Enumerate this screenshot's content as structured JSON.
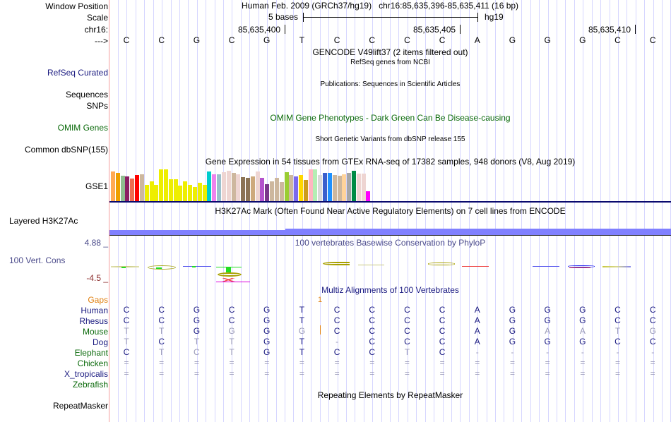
{
  "header": {
    "window_position_label": "Window Position",
    "scale_label": "Scale",
    "chrom_label": "chr16:",
    "strand_label": "--->",
    "assembly_title": "Human Feb. 2009 (GRCh37/hg19)",
    "position": "chr16:85,635,396-85,635,411 (16 bp)",
    "scale_text": "5 bases",
    "scale_db": "hg19",
    "coordinates": [
      "85,635,400",
      "85,635,405",
      "85,635,410"
    ]
  },
  "sequence": [
    "C",
    "C",
    "G",
    "C",
    "G",
    "T",
    "C",
    "C",
    "C",
    "C",
    "A",
    "G",
    "G",
    "G",
    "C",
    "C"
  ],
  "tracks": {
    "gencode": {
      "title": "GENCODE V49lift37 (2 items filtered out)"
    },
    "refseq": {
      "label": "RefSeq Curated",
      "title": "RefSeq genes from NCBI"
    },
    "publications": {
      "label_line1": "Sequences",
      "label_line2": "SNPs",
      "title": "Publications: Sequences in Scientific Articles"
    },
    "omim": {
      "label": "OMIM Genes",
      "title": "OMIM Gene Phenotypes - Dark Green Can Be Disease-causing"
    },
    "dbsnp": {
      "label": "Common dbSNP(155)",
      "title": "Short Genetic Variants from dbSNP release 155"
    },
    "gtex": {
      "label": "GSE1",
      "title": "Gene Expression in 54 tissues from GTEx RNA-seq of 17382 samples, 948 donors (V8, Aug 2019)",
      "bars": [
        {
          "color": "#ffaa55",
          "value": 0.94
        },
        {
          "color": "#ee9f00",
          "value": 0.9
        },
        {
          "color": "#8fbc8f",
          "value": 0.8
        },
        {
          "color": "#8b1c62",
          "value": 0.78
        },
        {
          "color": "#ee6a50",
          "value": 0.72
        },
        {
          "color": "#ff0000",
          "value": 0.82
        },
        {
          "color": "#cdb79e",
          "value": 0.85
        },
        {
          "color": "#eeee00",
          "value": 0.52
        },
        {
          "color": "#eeee00",
          "value": 0.62
        },
        {
          "color": "#eeee00",
          "value": 0.52
        },
        {
          "color": "#eeee00",
          "value": 0.99
        },
        {
          "color": "#eeee00",
          "value": 0.99
        },
        {
          "color": "#eeee00",
          "value": 0.7
        },
        {
          "color": "#eeee00",
          "value": 0.7
        },
        {
          "color": "#eeee00",
          "value": 0.5
        },
        {
          "color": "#eeee00",
          "value": 0.62
        },
        {
          "color": "#eeee00",
          "value": 0.52
        },
        {
          "color": "#eeee00",
          "value": 0.45
        },
        {
          "color": "#eeee00",
          "value": 0.58
        },
        {
          "color": "#eeee00",
          "value": 0.52
        },
        {
          "color": "#00cdcd",
          "value": 0.94
        },
        {
          "color": "#ee82ee",
          "value": 0.85
        },
        {
          "color": "#9ac0cd",
          "value": 0.85
        },
        {
          "color": "#eed5d2",
          "value": 0.92
        },
        {
          "color": "#eed5d2",
          "value": 0.96
        },
        {
          "color": "#cdb79e",
          "value": 0.9
        },
        {
          "color": "#eed5d2",
          "value": 0.85
        },
        {
          "color": "#8b7355",
          "value": 0.76
        },
        {
          "color": "#8b7355",
          "value": 0.73
        },
        {
          "color": "#cdaa7d",
          "value": 0.79
        },
        {
          "color": "#eed5d2",
          "value": 0.94
        },
        {
          "color": "#b452cd",
          "value": 0.74
        },
        {
          "color": "#7a378b",
          "value": 0.54
        },
        {
          "color": "#cdb79e",
          "value": 0.62
        },
        {
          "color": "#cdb79e",
          "value": 0.73
        },
        {
          "color": "#cdb79e",
          "value": 0.61
        },
        {
          "color": "#9acd32",
          "value": 0.91
        },
        {
          "color": "#cdb79e",
          "value": 0.83
        },
        {
          "color": "#7b68ee",
          "value": 0.79
        },
        {
          "color": "#ffd700",
          "value": 0.83
        },
        {
          "color": "#cd9b1d",
          "value": 0.67
        },
        {
          "color": "#ffb6c1",
          "value": 1.0
        },
        {
          "color": "#b4eeb4",
          "value": 1.0
        },
        {
          "color": "#d9d9d9",
          "value": 0.83
        },
        {
          "color": "#3a5fcd",
          "value": 0.89
        },
        {
          "color": "#1e90ff",
          "value": 0.89
        },
        {
          "color": "#cdb79e",
          "value": 0.82
        },
        {
          "color": "#cdb79e",
          "value": 0.8
        },
        {
          "color": "#ffd39b",
          "value": 0.84
        },
        {
          "color": "#a6a6a6",
          "value": 0.89
        },
        {
          "color": "#008b45",
          "value": 0.95
        },
        {
          "color": "#eed5d2",
          "value": 0.86
        },
        {
          "color": "#eed5d2",
          "value": 0.88
        },
        {
          "color": "#ff00ff",
          "value": 0.33
        }
      ]
    },
    "h3k27ac": {
      "label": "Layered H3K27Ac",
      "title": "H3K27Ac Mark (Often Found Near Active Regulatory Elements) on 7 cell lines from ENCODE",
      "color": "#8080ff"
    },
    "cons": {
      "label": "100 Vert. Cons",
      "title": "100 vertebrates Basewise Conservation by PhyloP",
      "max": "4.88 _",
      "min": "-4.5 _"
    },
    "multiz": {
      "title": "Multiz Alignments of 100 Vertebrates",
      "gaps_label": "Gaps",
      "gap_marker": "1",
      "species": [
        {
          "name": "Human",
          "color": "navy",
          "bases": [
            "C",
            "C",
            "G",
            "C",
            "G",
            "T",
            "C",
            "C",
            "C",
            "C",
            "A",
            "G",
            "G",
            "G",
            "C",
            "C"
          ]
        },
        {
          "name": "Rhesus",
          "color": "navy",
          "bases": [
            "C",
            "C",
            "G",
            "C",
            "G",
            "T",
            "C",
            "C",
            "C",
            "C",
            "A",
            "G",
            "G",
            "G",
            "C",
            "C"
          ]
        },
        {
          "name": "Mouse",
          "color": "green",
          "bases": [
            "T",
            "T",
            "G",
            "G",
            "G",
            "G",
            "C",
            "C",
            "C",
            "C",
            "A",
            "G",
            "A",
            "A",
            "T",
            "G"
          ]
        },
        {
          "name": "Dog",
          "color": "navy",
          "bases": [
            "T",
            "C",
            "T",
            "T",
            "G",
            "T",
            "-",
            "C",
            "C",
            "C",
            "A",
            "G",
            "G",
            "G",
            "C",
            "C"
          ]
        },
        {
          "name": "Elephant",
          "color": "green",
          "bases": [
            "C",
            "T",
            "C",
            "T",
            "G",
            "T",
            "C",
            "C",
            "T",
            "C",
            "-",
            "-",
            "-",
            "-",
            "-",
            "-"
          ]
        },
        {
          "name": "Chicken",
          "color": "green",
          "bases": [
            "=",
            "=",
            "=",
            "=",
            "=",
            "=",
            "=",
            "=",
            "=",
            "=",
            "=",
            "=",
            "=",
            "=",
            "=",
            "="
          ]
        },
        {
          "name": "X_tropicalis",
          "color": "navy",
          "bases": [
            "=",
            "=",
            "=",
            "=",
            "=",
            "=",
            "=",
            "=",
            "=",
            "=",
            "=",
            "=",
            "=",
            "=",
            "=",
            "="
          ]
        },
        {
          "name": "Zebrafish",
          "color": "green",
          "bases": [
            "",
            "",
            "",
            "",
            "",
            "",
            "",
            "",
            "",
            "",
            "",
            "",
            "",
            "",
            "",
            ""
          ]
        }
      ]
    },
    "repeatmasker": {
      "label": "RepeatMasker",
      "title": "Repeating Elements by RepeatMasker"
    }
  }
}
